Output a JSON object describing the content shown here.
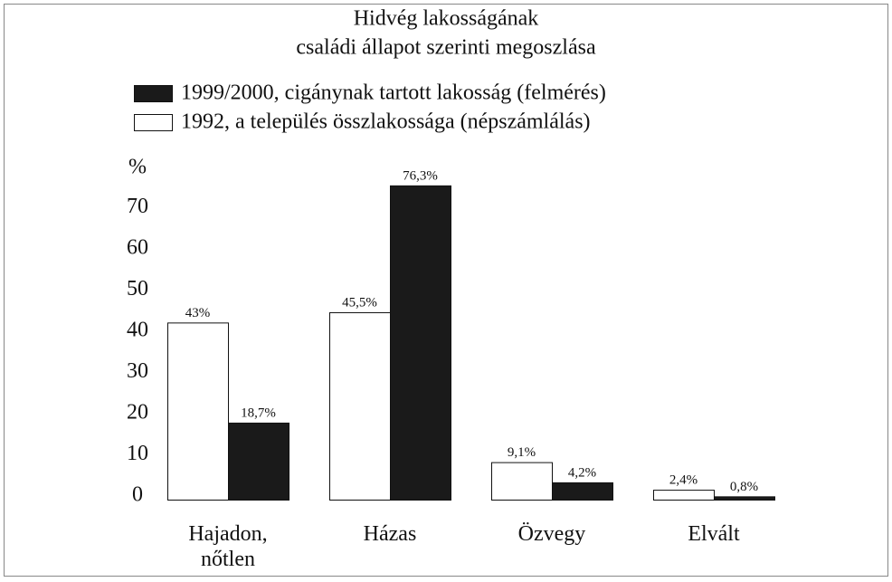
{
  "chart_data": {
    "type": "bar",
    "title": [
      "Hidvég lakosságának",
      "családi állapot szerinti megoszlása"
    ],
    "ylabel": "%",
    "categories": [
      "Hajadon, nőtlen",
      "Házas",
      "Özvegy",
      "Elvált"
    ],
    "series": [
      {
        "name": "1999/2000, cigánynak tartott lakosság (felmérés)",
        "color": "#1a1a1a",
        "values": [
          18.7,
          76.3,
          4.2,
          0.8
        ],
        "value_labels": [
          "18,7%",
          "76,3%",
          "4,2%",
          "0,8%"
        ]
      },
      {
        "name": "1992, a település összlakossága (népszámlálás)",
        "color": "#ffffff",
        "values": [
          43,
          45.5,
          9.1,
          2.4
        ],
        "value_labels": [
          "43%",
          "45,5%",
          "9,1%",
          "2,4%"
        ]
      }
    ],
    "ylim": [
      0,
      80
    ],
    "yticks": [
      0,
      10,
      20,
      30,
      40,
      50,
      60,
      70
    ],
    "grid": false
  }
}
